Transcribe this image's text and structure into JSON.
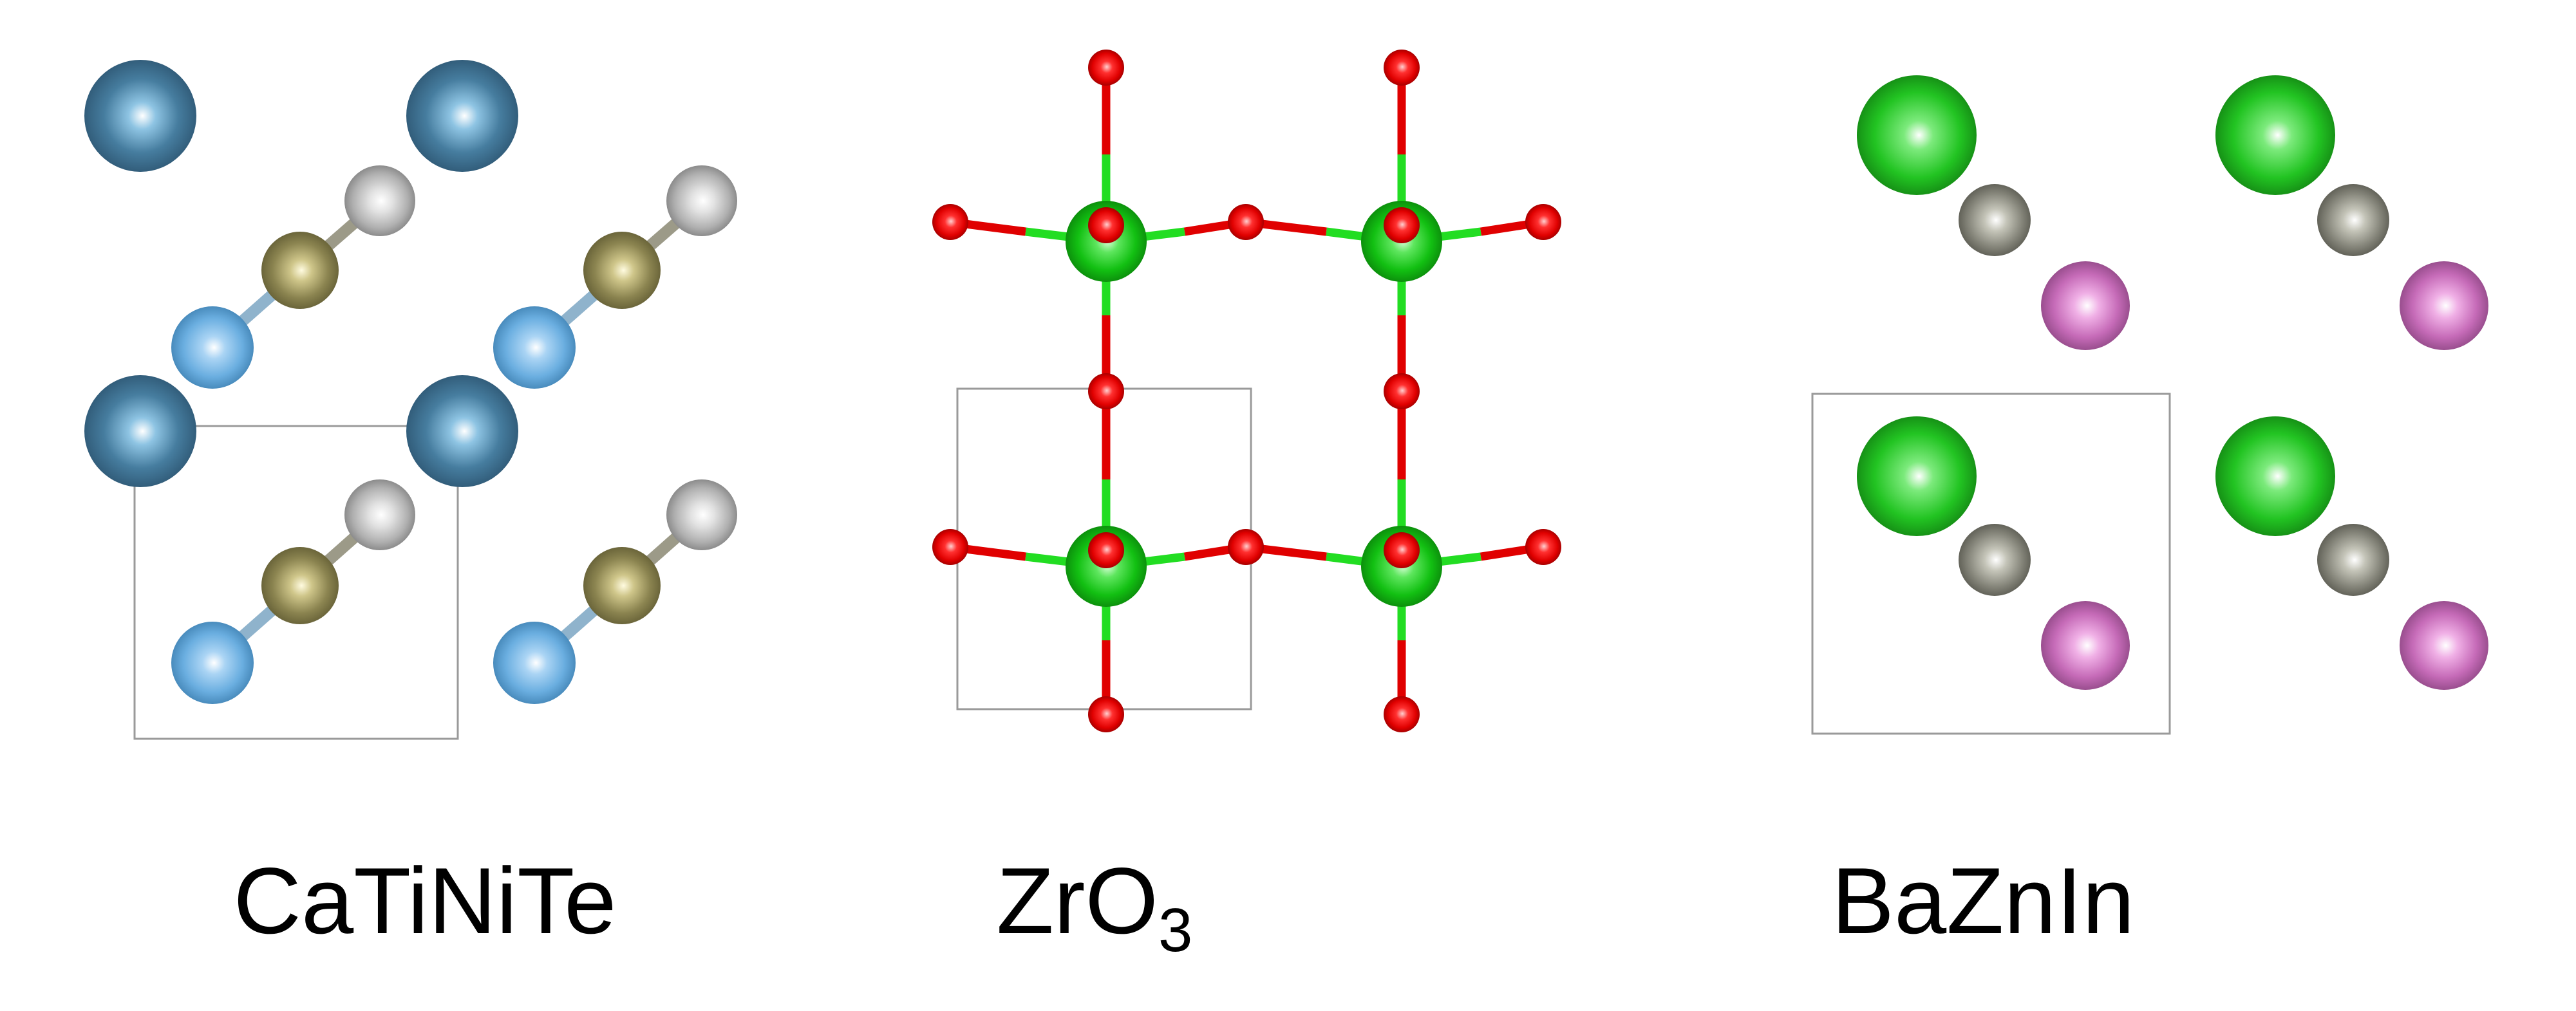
{
  "panels": [
    {
      "formula": "CaTiNiTe",
      "formula_base": "CaTiNiTe",
      "formula_sub": "",
      "colors": {
        "ca": "#467d9f",
        "ti": "#8b8450",
        "ni": "#c8c8c8",
        "te": "#6aaee0",
        "cell_edge": "#9a9a9a"
      }
    },
    {
      "formula": "ZrO3",
      "formula_base": "ZrO",
      "formula_sub": "3",
      "colors": {
        "zr": "#12c012",
        "o": "#e00000",
        "bond_zr": "#22dd22",
        "bond_o": "#e00000",
        "cell_edge": "#9a9a9a"
      }
    },
    {
      "formula": "BaZnIn",
      "formula_base": "BaZnIn",
      "formula_sub": "",
      "colors": {
        "ba": "#22c422",
        "zn": "#85857a",
        "in": "#c66bb8",
        "cell_edge": "#9a9a9a"
      }
    }
  ]
}
